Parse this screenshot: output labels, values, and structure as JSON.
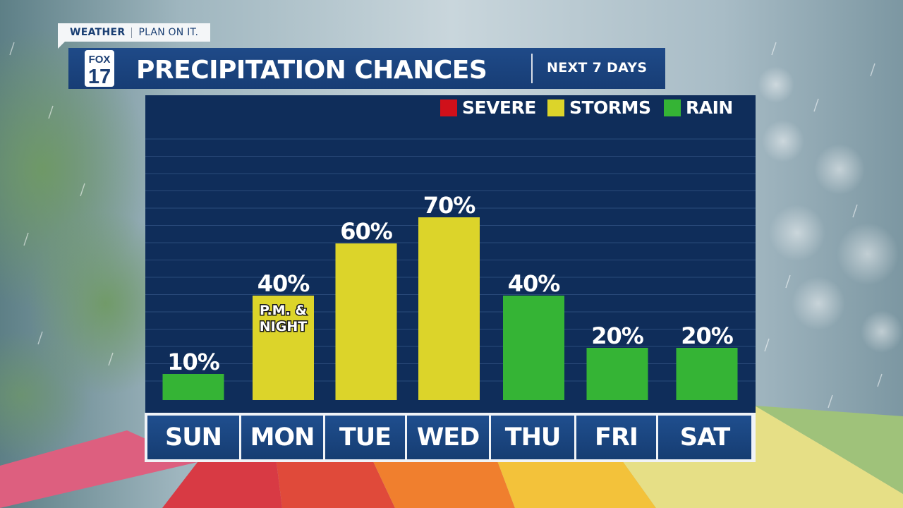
{
  "brand": {
    "tag_bold": "WEATHER",
    "tag_rest": "PLAN ON IT.",
    "logo_top": "FOX",
    "logo_num": "17"
  },
  "header": {
    "title": "PRECIPITATION CHANCES",
    "subtitle": "NEXT 7 DAYS"
  },
  "colors": {
    "severe": "#d0101a",
    "storms": "#dcd42a",
    "rain": "#35b435",
    "panel": "#0f2d5a",
    "header": "#1c4580"
  },
  "chart_data": {
    "type": "bar",
    "categories": [
      "SUN",
      "MON",
      "TUE",
      "WED",
      "THU",
      "FRI",
      "SAT"
    ],
    "values": [
      10,
      40,
      60,
      70,
      40,
      20,
      20
    ],
    "value_labels": [
      "10%",
      "40%",
      "60%",
      "70%",
      "40%",
      "20%",
      "20%"
    ],
    "bar_type": [
      "rain",
      "storms",
      "storms",
      "storms",
      "rain",
      "rain",
      "rain"
    ],
    "annotations": [
      {
        "category": "MON",
        "text": [
          "P.M. &",
          "NIGHT"
        ]
      }
    ],
    "legend": [
      {
        "key": "severe",
        "label": "SEVERE"
      },
      {
        "key": "storms",
        "label": "STORMS"
      },
      {
        "key": "rain",
        "label": "RAIN"
      }
    ],
    "ylim": [
      0,
      100
    ],
    "unit": "%",
    "grid": true,
    "legend_position": "top-right"
  }
}
